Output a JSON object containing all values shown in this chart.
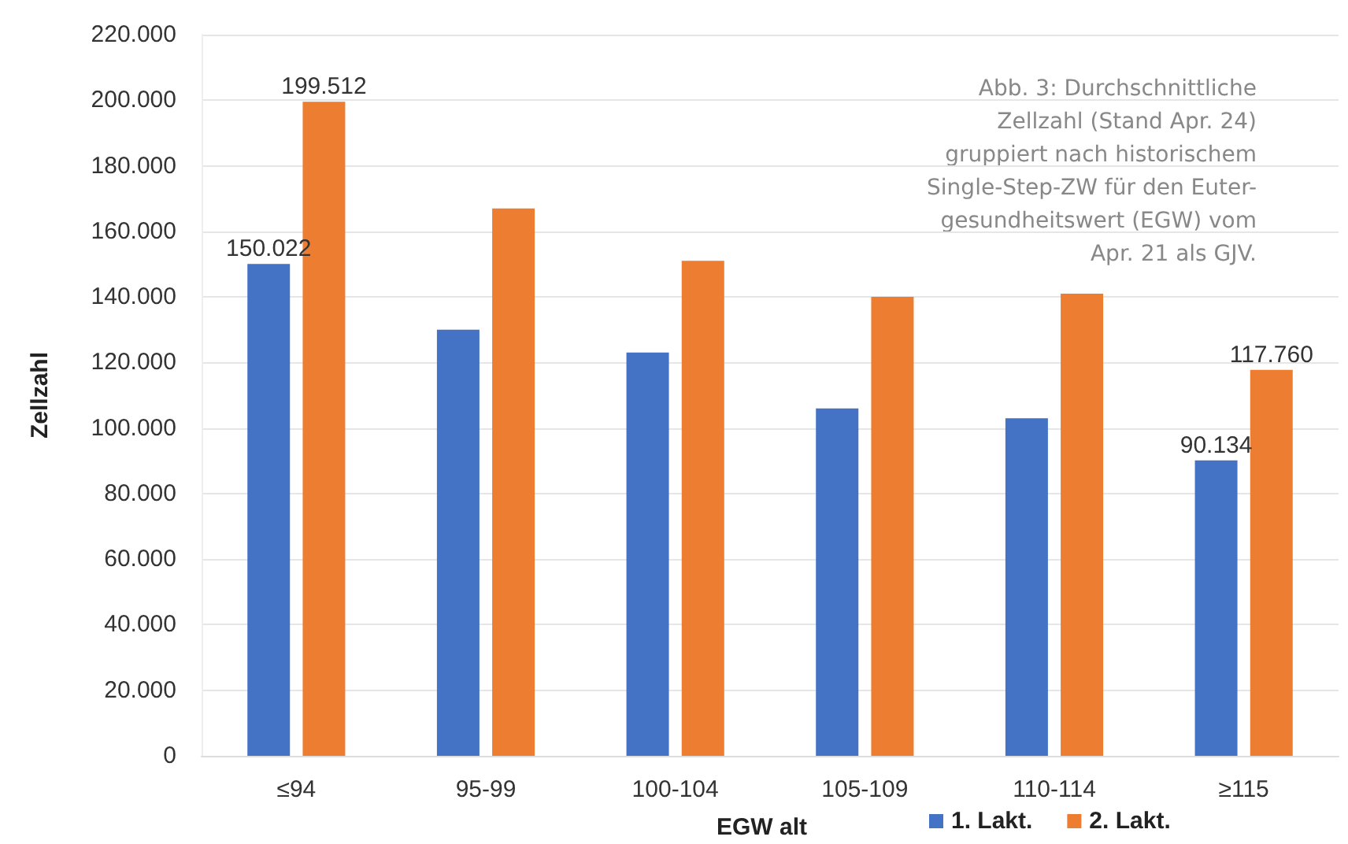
{
  "chart_data": {
    "type": "bar",
    "categories": [
      "≤94",
      "95-99",
      "100-104",
      "105-109",
      "110-114",
      "≥115"
    ],
    "series": [
      {
        "name": "1. Lakt.",
        "color": "#4472c4",
        "values": [
          150022,
          130000,
          123000,
          106000,
          103000,
          90134
        ],
        "value_labels": [
          "150.022",
          null,
          null,
          null,
          null,
          "90.134"
        ]
      },
      {
        "name": "2. Lakt.",
        "color": "#ed7d31",
        "values": [
          199512,
          167000,
          151000,
          140000,
          141000,
          117760
        ],
        "value_labels": [
          "199.512",
          null,
          null,
          null,
          null,
          "117.760"
        ]
      }
    ],
    "xlabel": "EGW alt",
    "ylabel": "Zellzahl",
    "ylim": [
      0,
      220000
    ],
    "yticks": [
      {
        "value": 0,
        "label": "0"
      },
      {
        "value": 20000,
        "label": "20.000"
      },
      {
        "value": 40000,
        "label": "40.000"
      },
      {
        "value": 60000,
        "label": "60.000"
      },
      {
        "value": 80000,
        "label": "80.000"
      },
      {
        "value": 100000,
        "label": "100.000"
      },
      {
        "value": 120000,
        "label": "120.000"
      },
      {
        "value": 140000,
        "label": "140.000"
      },
      {
        "value": 160000,
        "label": "160.000"
      },
      {
        "value": 180000,
        "label": "180.000"
      },
      {
        "value": 200000,
        "label": "200.000"
      },
      {
        "value": 220000,
        "label": "220.000"
      }
    ],
    "grid": "y",
    "legend": "bottom",
    "annotations": [
      "Abb. 3: Durchschnittliche\nZellzahl (Stand Apr. 24)\ngruppiert nach historischem\nSingle-Step-ZW für den Euter-\ngesundheitswert (EGW) vom\nApr. 21 als GJV."
    ]
  }
}
